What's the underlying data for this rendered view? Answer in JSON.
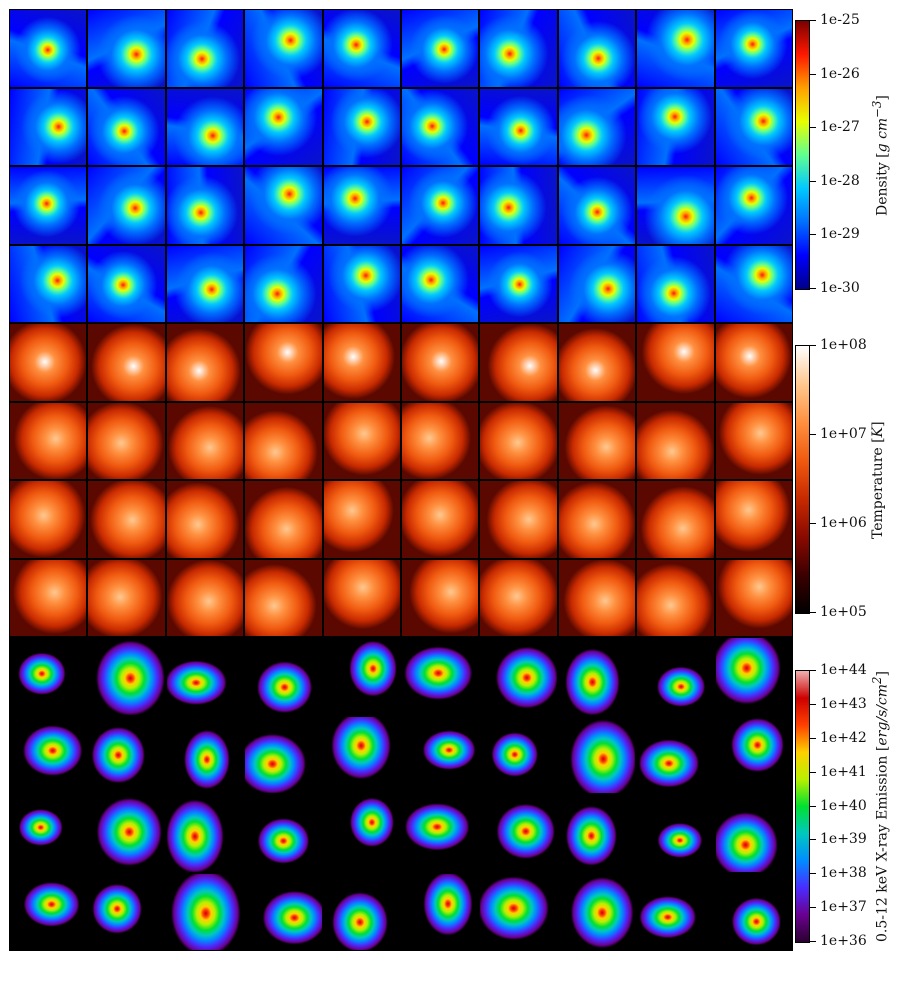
{
  "grid": {
    "columns": 10,
    "rows_per_panel": 4
  },
  "panels": [
    {
      "key": "density",
      "label": "Density",
      "unit": "g cm",
      "unit_exp": "−3",
      "ticks": [
        "1e-25",
        "1e-26",
        "1e-27",
        "1e-28",
        "1e-29",
        "1e-30"
      ],
      "colormap": [
        "#00008a",
        "#0000ff",
        "#0070ff",
        "#00c8ff",
        "#60ff90",
        "#e8ff00",
        "#ffa000",
        "#ff1800",
        "#7a0000"
      ],
      "background": "#0a14c8"
    },
    {
      "key": "temperature",
      "label": "Temperature",
      "unit": "K",
      "unit_exp": "",
      "ticks": [
        "1e+08",
        "1e+07",
        "1e+06",
        "1e+05"
      ],
      "colormap": [
        "#000000",
        "#3c0000",
        "#8a0a00",
        "#c82a00",
        "#f05a10",
        "#ff9040",
        "#ffc890",
        "#ffffff"
      ],
      "background": "#5a0800"
    },
    {
      "key": "xray",
      "label": "0.5-12 keV X-ray Emission",
      "unit": "erg/s/cm",
      "unit_exp": "2",
      "ticks": [
        "1e+44",
        "1e+43",
        "1e+42",
        "1e+41",
        "1e+40",
        "1e+39",
        "1e+38",
        "1e+37",
        "1e+36"
      ],
      "colormap": [
        "#2a0030",
        "#6a0090",
        "#4a2cff",
        "#008cff",
        "#00c8c0",
        "#00e030",
        "#b8f000",
        "#ffd000",
        "#ff4000",
        "#cc0000",
        "#f0b0b0"
      ],
      "background": "#000000"
    }
  ]
}
